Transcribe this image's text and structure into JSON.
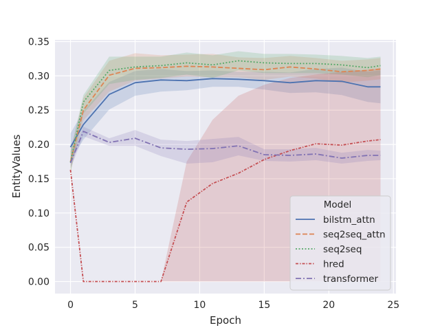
{
  "chart_data": {
    "type": "line",
    "title": "",
    "xlabel": "Epoch",
    "ylabel": "EntityValues",
    "xlim": [
      -1.2,
      25.2
    ],
    "ylim": [
      -0.0175,
      0.3525
    ],
    "xticks": [
      0,
      5,
      10,
      15,
      20,
      25
    ],
    "xtick_labels": [
      "0",
      "5",
      "10",
      "15",
      "20",
      "25"
    ],
    "yticks": [
      0.0,
      0.05,
      0.1,
      0.15,
      0.2,
      0.25,
      0.3,
      0.35
    ],
    "ytick_labels": [
      "0.00",
      "0.05",
      "0.10",
      "0.15",
      "0.20",
      "0.25",
      "0.30",
      "0.35"
    ],
    "grid": true,
    "legend": {
      "title": "Model",
      "position": "lower-right"
    },
    "x": [
      0,
      1,
      3,
      5,
      7,
      9,
      11,
      13,
      15,
      17,
      19,
      21,
      23,
      24
    ],
    "series": [
      {
        "name": "bilstm_attn",
        "color": "#4c72b0",
        "dash": "solid",
        "values": [
          0.196,
          0.229,
          0.273,
          0.29,
          0.294,
          0.293,
          0.296,
          0.295,
          0.293,
          0.29,
          0.293,
          0.292,
          0.284,
          0.284
        ],
        "ci_lower": [
          0.176,
          0.207,
          0.251,
          0.271,
          0.277,
          0.279,
          0.284,
          0.284,
          0.28,
          0.275,
          0.276,
          0.272,
          0.262,
          0.26
        ],
        "ci_upper": [
          0.216,
          0.249,
          0.291,
          0.307,
          0.31,
          0.307,
          0.308,
          0.306,
          0.306,
          0.305,
          0.31,
          0.312,
          0.306,
          0.308
        ]
      },
      {
        "name": "seq2seq_attn",
        "color": "#dd8452",
        "dash": "dashed",
        "values": [
          0.175,
          0.25,
          0.301,
          0.311,
          0.312,
          0.314,
          0.313,
          0.311,
          0.309,
          0.313,
          0.31,
          0.306,
          0.308,
          0.31
        ],
        "ci_lower": [
          0.16,
          0.235,
          0.277,
          0.293,
          0.296,
          0.299,
          0.298,
          0.298,
          0.294,
          0.299,
          0.296,
          0.29,
          0.293,
          0.295
        ],
        "ci_upper": [
          0.19,
          0.268,
          0.322,
          0.333,
          0.33,
          0.331,
          0.332,
          0.327,
          0.326,
          0.329,
          0.326,
          0.322,
          0.324,
          0.326
        ]
      },
      {
        "name": "seq2seq",
        "color": "#55a868",
        "dash": "dotted",
        "values": [
          0.174,
          0.262,
          0.308,
          0.313,
          0.315,
          0.319,
          0.316,
          0.322,
          0.319,
          0.318,
          0.318,
          0.316,
          0.312,
          0.315
        ],
        "ci_lower": [
          0.158,
          0.245,
          0.288,
          0.294,
          0.297,
          0.302,
          0.297,
          0.308,
          0.304,
          0.304,
          0.304,
          0.302,
          0.298,
          0.301
        ],
        "ci_upper": [
          0.19,
          0.272,
          0.328,
          0.328,
          0.328,
          0.334,
          0.33,
          0.336,
          0.332,
          0.332,
          0.331,
          0.329,
          0.326,
          0.328
        ]
      },
      {
        "name": "hred",
        "color": "#c44e52",
        "dash": "dashdot-short",
        "values": [
          0.163,
          0.0,
          0.0,
          0.0,
          0.0,
          0.116,
          0.143,
          0.158,
          0.178,
          0.191,
          0.201,
          0.199,
          0.205,
          0.207
        ],
        "ci_lower": [
          0.163,
          0.0,
          0.0,
          0.0,
          0.0,
          0.0,
          0.0,
          0.0,
          0.0,
          0.0,
          0.0,
          0.0,
          0.0,
          0.0
        ],
        "ci_upper": [
          0.163,
          0.0,
          0.0,
          0.0,
          0.0,
          0.175,
          0.236,
          0.271,
          0.287,
          0.297,
          0.302,
          0.306,
          0.309,
          0.311
        ]
      },
      {
        "name": "transformer",
        "color": "#8172b3",
        "dash": "dashdot",
        "values": [
          0.173,
          0.219,
          0.203,
          0.209,
          0.195,
          0.193,
          0.194,
          0.198,
          0.185,
          0.184,
          0.186,
          0.18,
          0.184,
          0.184
        ],
        "ci_lower": [
          0.165,
          0.212,
          0.198,
          0.198,
          0.183,
          0.172,
          0.174,
          0.184,
          0.176,
          0.175,
          0.177,
          0.172,
          0.176,
          0.177
        ],
        "ci_upper": [
          0.181,
          0.226,
          0.209,
          0.221,
          0.207,
          0.205,
          0.208,
          0.211,
          0.193,
          0.193,
          0.195,
          0.188,
          0.192,
          0.191
        ]
      }
    ]
  }
}
